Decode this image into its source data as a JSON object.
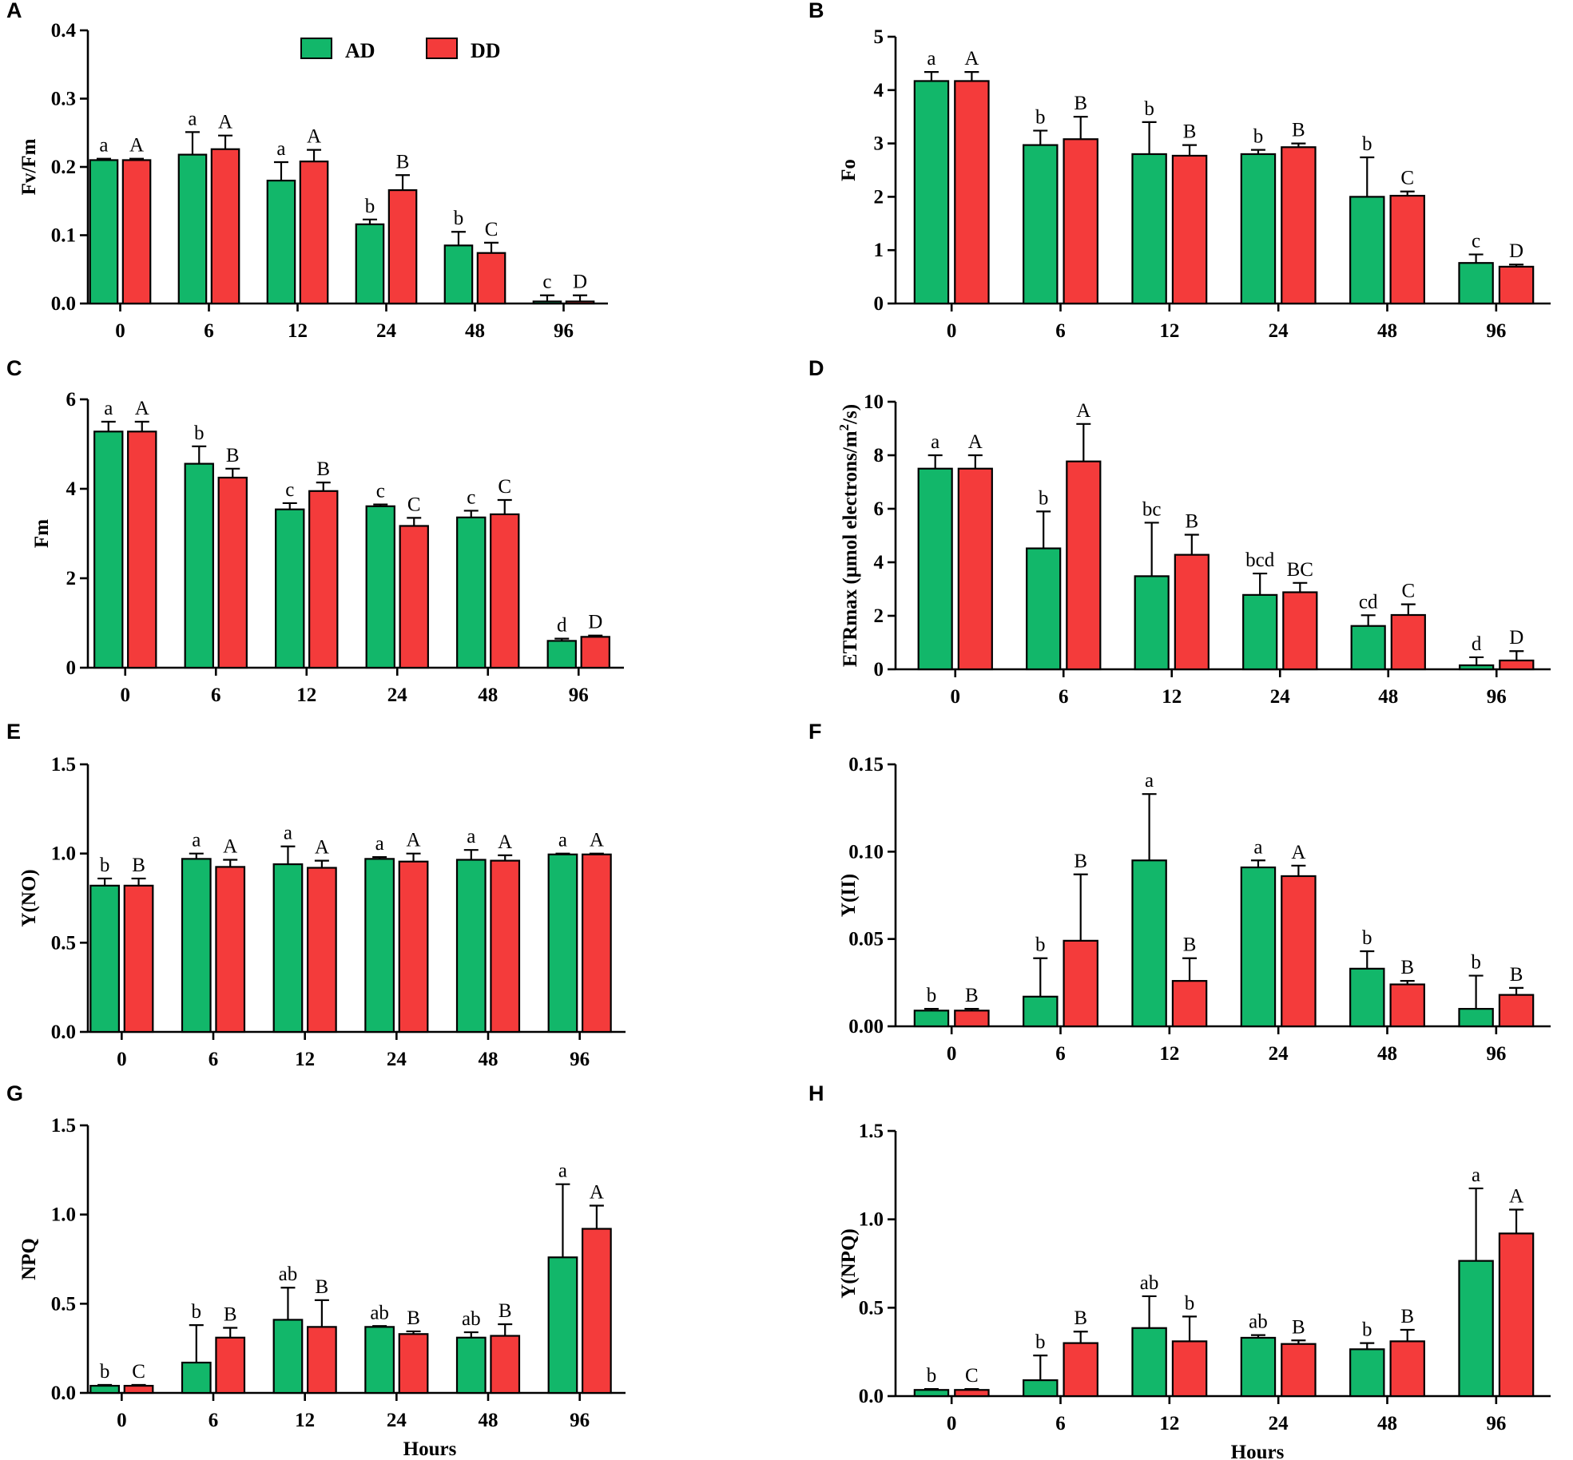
{
  "figure": {
    "legend": {
      "ad_label": "AD",
      "dd_label": "DD"
    }
  },
  "colors": {
    "AD": "#12b76a",
    "DD": "#f43b3b"
  },
  "chart_data": [
    {
      "panel": "A",
      "type": "bar",
      "ylabel": "Fv/Fm",
      "xlabel": "",
      "categories": [
        "0",
        "6",
        "12",
        "24",
        "48",
        "96"
      ],
      "ylim": [
        0,
        0.4
      ],
      "yticks": [
        "0.0",
        "0.1",
        "0.2",
        "0.3",
        "0.4"
      ],
      "series": [
        {
          "name": "AD",
          "values": [
            0.21,
            0.218,
            0.18,
            0.116,
            0.085,
            0.003
          ],
          "errors": [
            0.002,
            0.033,
            0.027,
            0.007,
            0.02,
            0.009
          ],
          "letters": [
            "a",
            "a",
            "a",
            "b",
            "b",
            "c"
          ]
        },
        {
          "name": "DD",
          "values": [
            0.21,
            0.226,
            0.208,
            0.166,
            0.074,
            0.003
          ],
          "errors": [
            0.002,
            0.02,
            0.017,
            0.022,
            0.015,
            0.009
          ],
          "letters": [
            "A",
            "A",
            "A",
            "B",
            "C",
            "D"
          ]
        }
      ]
    },
    {
      "panel": "B",
      "type": "bar",
      "ylabel": "Fo",
      "xlabel": "",
      "categories": [
        "0",
        "6",
        "12",
        "24",
        "48",
        "96"
      ],
      "ylim": [
        0,
        5
      ],
      "yticks": [
        "0",
        "1",
        "2",
        "3",
        "4",
        "5"
      ],
      "series": [
        {
          "name": "AD",
          "values": [
            4.17,
            2.97,
            2.8,
            2.8,
            2.0,
            0.76
          ],
          "errors": [
            0.17,
            0.27,
            0.6,
            0.08,
            0.74,
            0.16
          ],
          "letters": [
            "a",
            "b",
            "b",
            "b",
            "b",
            "c"
          ]
        },
        {
          "name": "DD",
          "values": [
            4.17,
            3.08,
            2.77,
            2.93,
            2.02,
            0.69
          ],
          "errors": [
            0.17,
            0.42,
            0.2,
            0.07,
            0.08,
            0.04
          ],
          "letters": [
            "A",
            "B",
            "B",
            "B",
            "C",
            "D"
          ]
        }
      ]
    },
    {
      "panel": "C",
      "type": "bar",
      "ylabel": "Fm",
      "xlabel": "",
      "categories": [
        "0",
        "6",
        "12",
        "24",
        "48",
        "96"
      ],
      "ylim": [
        0,
        6
      ],
      "yticks": [
        "0",
        "2",
        "4",
        "6"
      ],
      "series": [
        {
          "name": "AD",
          "values": [
            5.28,
            4.56,
            3.54,
            3.61,
            3.36,
            0.6
          ],
          "errors": [
            0.22,
            0.39,
            0.14,
            0.04,
            0.15,
            0.05
          ],
          "letters": [
            "a",
            "b",
            "c",
            "c",
            "c",
            "d"
          ]
        },
        {
          "name": "DD",
          "values": [
            5.28,
            4.25,
            3.95,
            3.17,
            3.43,
            0.69
          ],
          "errors": [
            0.22,
            0.2,
            0.19,
            0.18,
            0.32,
            0.03
          ],
          "letters": [
            "A",
            "B",
            "B",
            "C",
            "C",
            "D"
          ]
        }
      ]
    },
    {
      "panel": "D",
      "type": "bar",
      "ylabel": "ETRmax (μmol electrons/m²/s)",
      "ylabel_main": "ETRmax (μmol electrons/m",
      "ylabel_sup": "2",
      "ylabel_end": "/s)",
      "xlabel": "",
      "categories": [
        "0",
        "6",
        "12",
        "24",
        "48",
        "96"
      ],
      "ylim": [
        0,
        10
      ],
      "yticks": [
        "0",
        "2",
        "4",
        "6",
        "8",
        "10"
      ],
      "series": [
        {
          "name": "AD",
          "values": [
            7.5,
            4.52,
            3.48,
            2.78,
            1.62,
            0.15
          ],
          "errors": [
            0.5,
            1.38,
            2.0,
            0.8,
            0.4,
            0.3
          ],
          "letters": [
            "a",
            "b",
            "bc",
            "bcd",
            "cd",
            "d"
          ]
        },
        {
          "name": "DD",
          "values": [
            7.5,
            7.77,
            4.28,
            2.88,
            2.03,
            0.33
          ],
          "errors": [
            0.5,
            1.4,
            0.75,
            0.35,
            0.4,
            0.35
          ],
          "letters": [
            "A",
            "A",
            "B",
            "BC",
            "C",
            "D"
          ]
        }
      ]
    },
    {
      "panel": "E",
      "type": "bar",
      "ylabel": "Y(NO)",
      "xlabel": "",
      "categories": [
        "0",
        "6",
        "12",
        "24",
        "48",
        "96"
      ],
      "ylim": [
        0,
        1.5
      ],
      "yticks": [
        "0.0",
        "0.5",
        "1.0",
        "1.5"
      ],
      "series": [
        {
          "name": "AD",
          "values": [
            0.82,
            0.97,
            0.94,
            0.97,
            0.965,
            0.995
          ],
          "errors": [
            0.04,
            0.03,
            0.1,
            0.01,
            0.055,
            0.005
          ],
          "letters": [
            "b",
            "a",
            "a",
            "a",
            "a",
            "a"
          ]
        },
        {
          "name": "DD",
          "values": [
            0.82,
            0.925,
            0.92,
            0.955,
            0.96,
            0.995
          ],
          "errors": [
            0.04,
            0.04,
            0.04,
            0.045,
            0.03,
            0.005
          ],
          "letters": [
            "B",
            "A",
            "A",
            "A",
            "A",
            "A"
          ]
        }
      ]
    },
    {
      "panel": "F",
      "type": "bar",
      "ylabel": "Y(II)",
      "xlabel": "",
      "categories": [
        "0",
        "6",
        "12",
        "24",
        "48",
        "96"
      ],
      "ylim": [
        0,
        0.15
      ],
      "yticks": [
        "0.00",
        "0.05",
        "0.10",
        "0.15"
      ],
      "series": [
        {
          "name": "AD",
          "values": [
            0.009,
            0.017,
            0.095,
            0.091,
            0.033,
            0.01
          ],
          "errors": [
            0.001,
            0.022,
            0.038,
            0.004,
            0.01,
            0.019
          ],
          "letters": [
            "b",
            "b",
            "a",
            "a",
            "b",
            "b"
          ]
        },
        {
          "name": "DD",
          "values": [
            0.009,
            0.049,
            0.026,
            0.086,
            0.024,
            0.018
          ],
          "errors": [
            0.001,
            0.038,
            0.013,
            0.006,
            0.002,
            0.004
          ],
          "letters": [
            "B",
            "B",
            "B",
            "A",
            "B",
            "B"
          ]
        }
      ]
    },
    {
      "panel": "G",
      "type": "bar",
      "ylabel": "NPQ",
      "xlabel": "Hours",
      "categories": [
        "0",
        "6",
        "12",
        "24",
        "48",
        "96"
      ],
      "ylim": [
        0,
        1.5
      ],
      "yticks": [
        "0.0",
        "0.5",
        "1.0",
        "1.5"
      ],
      "series": [
        {
          "name": "AD",
          "values": [
            0.04,
            0.17,
            0.41,
            0.37,
            0.31,
            0.76
          ],
          "errors": [
            0.005,
            0.21,
            0.18,
            0.005,
            0.03,
            0.41
          ],
          "letters": [
            "b",
            "b",
            "ab",
            "ab",
            "ab",
            "a"
          ]
        },
        {
          "name": "DD",
          "values": [
            0.04,
            0.31,
            0.37,
            0.33,
            0.32,
            0.92
          ],
          "errors": [
            0.005,
            0.055,
            0.15,
            0.015,
            0.065,
            0.13
          ],
          "letters": [
            "C",
            "B",
            "B",
            "B",
            "B",
            "A"
          ]
        }
      ]
    },
    {
      "panel": "H",
      "type": "bar",
      "ylabel": "Y(NPQ)",
      "xlabel": "Hours",
      "categories": [
        "0",
        "6",
        "12",
        "24",
        "48",
        "96"
      ],
      "ylim": [
        0,
        1.5
      ],
      "yticks": [
        "0.0",
        "0.5",
        "1.0",
        "1.5"
      ],
      "series": [
        {
          "name": "AD",
          "values": [
            0.035,
            0.09,
            0.385,
            0.33,
            0.265,
            0.765
          ],
          "errors": [
            0.005,
            0.14,
            0.18,
            0.015,
            0.035,
            0.41
          ],
          "letters": [
            "b",
            "b",
            "ab",
            "ab",
            "b",
            "a"
          ]
        },
        {
          "name": "DD",
          "values": [
            0.035,
            0.3,
            0.31,
            0.295,
            0.31,
            0.92
          ],
          "errors": [
            0.005,
            0.065,
            0.14,
            0.02,
            0.065,
            0.135
          ],
          "letters": [
            "C",
            "B",
            "b",
            "B",
            "B",
            "A"
          ]
        }
      ]
    }
  ]
}
